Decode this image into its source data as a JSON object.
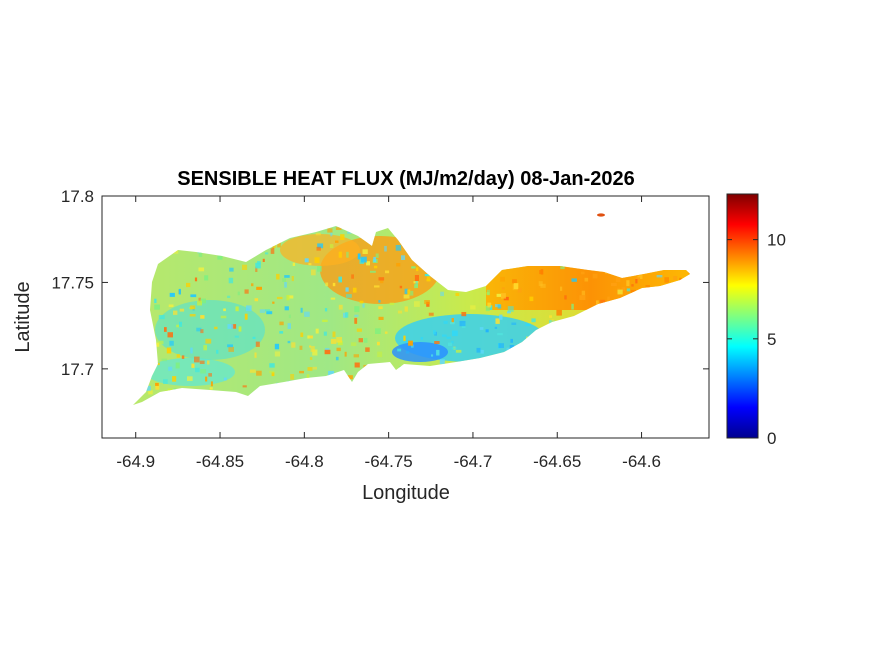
{
  "chart_data": {
    "type": "heatmap",
    "title": "SENSIBLE HEAT FLUX (MJ/m2/day) 08-Jan-2026",
    "xlabel": "Longitude",
    "ylabel": "Latitude",
    "xlim": [
      -64.92,
      -64.56
    ],
    "ylim": [
      17.66,
      17.8
    ],
    "x_ticks": [
      -64.9,
      -64.85,
      -64.8,
      -64.75,
      -64.7,
      -64.65,
      -64.6
    ],
    "x_tick_labels": [
      "-64.9",
      "-64.85",
      "-64.8",
      "-64.75",
      "-64.7",
      "-64.65",
      "-64.6"
    ],
    "y_ticks": [
      17.7,
      17.75,
      17.8
    ],
    "y_tick_labels": [
      "17.7",
      "17.75",
      "17.8"
    ],
    "colorbar": {
      "range": [
        0,
        12.3
      ],
      "ticks": [
        0,
        5,
        10
      ],
      "tick_labels": [
        "0",
        "5",
        "10"
      ],
      "colormap": "jet"
    },
    "grid": false,
    "colors": {
      "low": "#00008f",
      "mid": "#00ffff",
      "high": "#800000",
      "axis": "#262626"
    }
  }
}
